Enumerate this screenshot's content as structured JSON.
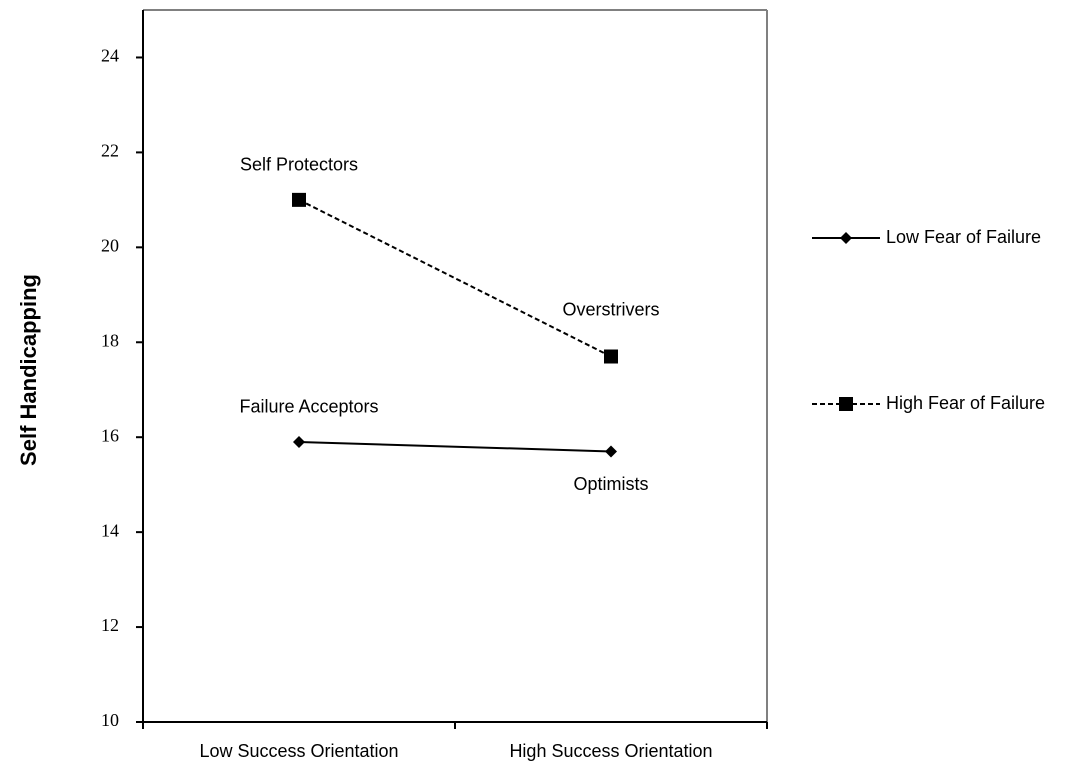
{
  "chart_data": {
    "type": "line",
    "y_label": "Self Handicapping",
    "categories": [
      "Low Success Orientation",
      "High Success Orientation"
    ],
    "series": [
      {
        "name": "Low Fear of Failure",
        "color": "#000000",
        "dashed": false,
        "marker": "diamond",
        "values": [
          15.9,
          15.7
        ],
        "point_labels": [
          "Failure Acceptors",
          "Optimists"
        ]
      },
      {
        "name": "High Fear of Failure",
        "color": "#000000",
        "dashed": true,
        "marker": "square",
        "values": [
          21.0,
          17.7
        ],
        "point_labels": [
          "Self Protectors",
          "Overstrivers"
        ]
      }
    ],
    "ylim": [
      10,
      25
    ],
    "yticks": [
      10,
      12,
      14,
      16,
      18,
      20,
      22,
      24
    ],
    "grid": false,
    "legend": "right"
  }
}
